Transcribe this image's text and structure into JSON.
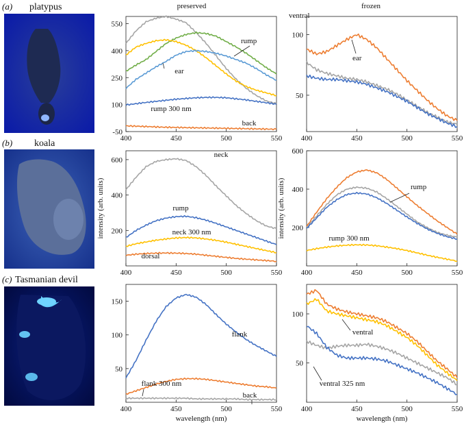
{
  "figure": {
    "columns": [
      "preserved",
      "frozen"
    ],
    "rows": [
      {
        "letter": "(a)",
        "name": "platypus"
      },
      {
        "letter": "(b)",
        "name": "koala"
      },
      {
        "letter": "(c)",
        "name": "Tasmanian devil"
      }
    ],
    "colors": {
      "blue": "#4472c4",
      "orange": "#ed7d31",
      "gray": "#a5a5a5",
      "yellow": "#ffc000",
      "green": "#70ad47",
      "lightblue": "#5b9bd5"
    }
  },
  "chart_data": [
    {
      "type": "line",
      "row": 0,
      "col": 0,
      "xlabel": "",
      "ylabel": "",
      "xlim": [
        400,
        550
      ],
      "ylim": [
        -50,
        590
      ],
      "xticks": [
        400,
        450,
        500,
        550
      ],
      "yticks": [
        -50,
        100,
        250,
        400,
        550
      ],
      "annotations": [
        "ventral",
        "rump",
        "ear",
        "rump 300 nm",
        "back"
      ],
      "series": [
        {
          "color": "#a5a5a5",
          "x": [
            400,
            410,
            420,
            430,
            440,
            450,
            460,
            470,
            480,
            490,
            500,
            510,
            520,
            530,
            540,
            550
          ],
          "y": [
            440,
            510,
            560,
            580,
            590,
            575,
            555,
            500,
            440,
            370,
            300,
            240,
            190,
            150,
            120,
            105
          ]
        },
        {
          "color": "#70ad47",
          "x": [
            400,
            410,
            420,
            430,
            440,
            450,
            460,
            470,
            480,
            490,
            500,
            510,
            520,
            530,
            540,
            550
          ],
          "y": [
            285,
            320,
            350,
            395,
            440,
            470,
            490,
            500,
            495,
            480,
            450,
            420,
            385,
            345,
            305,
            270
          ]
        },
        {
          "color": "#ffc000",
          "x": [
            400,
            410,
            420,
            430,
            440,
            450,
            460,
            470,
            480,
            490,
            500,
            510,
            520,
            530,
            540,
            550
          ],
          "y": [
            375,
            420,
            440,
            455,
            460,
            450,
            430,
            400,
            360,
            315,
            270,
            230,
            200,
            180,
            165,
            150
          ]
        },
        {
          "color": "#5b9bd5",
          "x": [
            400,
            410,
            420,
            430,
            440,
            450,
            460,
            470,
            480,
            490,
            500,
            510,
            520,
            530,
            540,
            550
          ],
          "y": [
            190,
            240,
            275,
            310,
            340,
            375,
            395,
            400,
            395,
            385,
            370,
            350,
            330,
            300,
            265,
            235
          ]
        },
        {
          "color": "#4472c4",
          "x": [
            400,
            410,
            420,
            430,
            440,
            450,
            460,
            470,
            480,
            490,
            500,
            510,
            520,
            530,
            540,
            550
          ],
          "y": [
            98,
            105,
            112,
            118,
            124,
            130,
            134,
            138,
            140,
            140,
            138,
            132,
            126,
            118,
            110,
            102
          ]
        },
        {
          "color": "#ed7d31",
          "x": [
            400,
            410,
            420,
            430,
            440,
            450,
            460,
            470,
            480,
            490,
            500,
            510,
            520,
            530,
            540,
            550
          ],
          "y": [
            -18,
            -20,
            -22,
            -24,
            -26,
            -27,
            -28,
            -29,
            -30,
            -31,
            -32,
            -33,
            -34,
            -35,
            -36,
            -37
          ]
        }
      ]
    },
    {
      "type": "line",
      "row": 0,
      "col": 1,
      "xlabel": "",
      "ylabel": "",
      "xlim": [
        400,
        550
      ],
      "ylim": [
        20,
        115
      ],
      "xticks": [
        400,
        450,
        500,
        550
      ],
      "yticks": [
        50,
        100
      ],
      "annotations": [
        "ear"
      ],
      "series": [
        {
          "color": "#ed7d31",
          "x": [
            400,
            410,
            420,
            430,
            440,
            450,
            460,
            470,
            480,
            490,
            500,
            510,
            520,
            530,
            540,
            550
          ],
          "y": [
            88,
            84,
            86,
            91,
            96,
            100,
            96,
            89,
            80,
            71,
            62,
            54,
            46,
            39,
            33,
            29
          ]
        },
        {
          "color": "#a5a5a5",
          "x": [
            400,
            410,
            420,
            430,
            440,
            450,
            460,
            470,
            480,
            490,
            500,
            510,
            520,
            530,
            540,
            550
          ],
          "y": [
            77,
            71,
            68,
            66,
            64,
            63,
            61,
            58,
            55,
            51,
            46,
            41,
            36,
            32,
            28,
            26
          ]
        },
        {
          "color": "#4472c4",
          "x": [
            400,
            410,
            420,
            430,
            440,
            450,
            460,
            470,
            480,
            490,
            500,
            510,
            520,
            530,
            540,
            550
          ],
          "y": [
            66,
            64,
            63,
            63,
            62,
            61,
            59,
            56,
            53,
            49,
            45,
            40,
            35,
            31,
            27,
            24
          ]
        }
      ]
    },
    {
      "type": "line",
      "row": 1,
      "col": 0,
      "xlabel": "",
      "ylabel": "intensity (arb. units)",
      "xlim": [
        400,
        550
      ],
      "ylim": [
        0,
        650
      ],
      "xticks": [
        400,
        450,
        500,
        550
      ],
      "yticks": [
        200,
        400,
        600
      ],
      "annotations": [
        "neck",
        "rump",
        "neck 300 nm",
        "dorsal"
      ],
      "series": [
        {
          "color": "#a5a5a5",
          "x": [
            400,
            410,
            420,
            430,
            440,
            450,
            460,
            470,
            480,
            490,
            500,
            510,
            520,
            530,
            540,
            550
          ],
          "y": [
            430,
            500,
            560,
            590,
            600,
            605,
            595,
            560,
            510,
            450,
            395,
            340,
            295,
            255,
            225,
            210
          ]
        },
        {
          "color": "#4472c4",
          "x": [
            400,
            410,
            420,
            430,
            440,
            450,
            460,
            470,
            480,
            490,
            500,
            510,
            520,
            530,
            540,
            550
          ],
          "y": [
            160,
            200,
            230,
            255,
            270,
            278,
            280,
            272,
            258,
            240,
            220,
            200,
            180,
            160,
            140,
            120
          ]
        },
        {
          "color": "#ffc000",
          "x": [
            400,
            410,
            420,
            430,
            440,
            450,
            460,
            470,
            480,
            490,
            500,
            510,
            520,
            530,
            540,
            550
          ],
          "y": [
            110,
            125,
            135,
            145,
            152,
            158,
            160,
            158,
            152,
            144,
            134,
            122,
            110,
            98,
            86,
            75
          ]
        },
        {
          "color": "#ed7d31",
          "x": [
            400,
            410,
            420,
            430,
            440,
            450,
            460,
            470,
            480,
            490,
            500,
            510,
            520,
            530,
            540,
            550
          ],
          "y": [
            60,
            66,
            70,
            72,
            73,
            72,
            70,
            66,
            60,
            54,
            48,
            42,
            38,
            34,
            30,
            26
          ]
        }
      ]
    },
    {
      "type": "line",
      "row": 1,
      "col": 1,
      "xlabel": "",
      "ylabel": "intensity (arb. units)",
      "xlim": [
        400,
        550
      ],
      "ylim": [
        0,
        600
      ],
      "xticks": [
        400,
        450,
        500,
        550
      ],
      "yticks": [
        200,
        400,
        600
      ],
      "annotations": [
        "rump",
        "rump 300 nm"
      ],
      "series": [
        {
          "color": "#ed7d31",
          "x": [
            400,
            410,
            420,
            430,
            440,
            450,
            460,
            470,
            480,
            490,
            500,
            510,
            520,
            530,
            540,
            550
          ],
          "y": [
            205,
            280,
            350,
            410,
            460,
            490,
            500,
            485,
            450,
            405,
            360,
            315,
            275,
            235,
            200,
            165
          ]
        },
        {
          "color": "#a5a5a5",
          "x": [
            400,
            410,
            420,
            430,
            440,
            450,
            460,
            470,
            480,
            490,
            500,
            510,
            520,
            530,
            540,
            550
          ],
          "y": [
            200,
            260,
            320,
            370,
            400,
            410,
            405,
            385,
            350,
            310,
            270,
            230,
            200,
            175,
            160,
            150
          ]
        },
        {
          "color": "#4472c4",
          "x": [
            400,
            410,
            420,
            430,
            440,
            450,
            460,
            470,
            480,
            490,
            500,
            510,
            520,
            530,
            540,
            550
          ],
          "y": [
            195,
            250,
            305,
            345,
            372,
            380,
            375,
            355,
            325,
            290,
            255,
            222,
            193,
            170,
            152,
            140
          ]
        },
        {
          "color": "#ffc000",
          "x": [
            400,
            410,
            420,
            430,
            440,
            450,
            460,
            470,
            480,
            490,
            500,
            510,
            520,
            530,
            540,
            550
          ],
          "y": [
            80,
            90,
            98,
            104,
            108,
            110,
            109,
            105,
            98,
            90,
            80,
            68,
            56,
            45,
            35,
            25
          ]
        }
      ]
    },
    {
      "type": "line",
      "row": 2,
      "col": 0,
      "xlabel": "wavelength (nm)",
      "ylabel": "",
      "xlim": [
        400,
        550
      ],
      "ylim": [
        0,
        175
      ],
      "xticks": [
        400,
        450,
        500,
        550
      ],
      "yticks": [
        50,
        100,
        150
      ],
      "annotations": [
        "flank",
        "flank 300 nm",
        "back"
      ],
      "series": [
        {
          "color": "#4472c4",
          "x": [
            400,
            410,
            420,
            430,
            440,
            450,
            460,
            470,
            480,
            490,
            500,
            510,
            520,
            530,
            540,
            550
          ],
          "y": [
            36,
            62,
            92,
            120,
            142,
            155,
            160,
            156,
            145,
            130,
            116,
            104,
            93,
            84,
            76,
            68
          ]
        },
        {
          "color": "#ed7d31",
          "x": [
            400,
            410,
            420,
            430,
            440,
            450,
            460,
            470,
            480,
            490,
            500,
            510,
            520,
            530,
            540,
            550
          ],
          "y": [
            12,
            17,
            22,
            27,
            31,
            34,
            35,
            35,
            34,
            32,
            30,
            28,
            26,
            24,
            23,
            21
          ]
        },
        {
          "color": "#a5a5a5",
          "x": [
            400,
            410,
            420,
            430,
            440,
            450,
            460,
            470,
            480,
            490,
            500,
            510,
            520,
            530,
            540,
            550
          ],
          "y": [
            6,
            6,
            6,
            6,
            6,
            6,
            6,
            5,
            5,
            5,
            5,
            5,
            4,
            4,
            4,
            4
          ]
        }
      ]
    },
    {
      "type": "line",
      "row": 2,
      "col": 1,
      "xlabel": "wavelength (nm)",
      "ylabel": "",
      "xlim": [
        400,
        550
      ],
      "ylim": [
        10,
        130
      ],
      "xticks": [
        400,
        450,
        500,
        550
      ],
      "yticks": [
        50,
        100
      ],
      "annotations": [
        "ventral",
        "ventral 325 nm"
      ],
      "series": [
        {
          "color": "#ed7d31",
          "x": [
            400,
            410,
            420,
            430,
            440,
            450,
            460,
            470,
            480,
            490,
            500,
            510,
            520,
            530,
            540,
            550
          ],
          "y": [
            120,
            124,
            110,
            105,
            102,
            100,
            98,
            96,
            92,
            86,
            80,
            72,
            62,
            52,
            44,
            35
          ]
        },
        {
          "color": "#ffc000",
          "x": [
            400,
            410,
            420,
            430,
            440,
            450,
            460,
            470,
            480,
            490,
            500,
            510,
            520,
            530,
            540,
            550
          ],
          "y": [
            110,
            115,
            103,
            100,
            98,
            96,
            94,
            92,
            88,
            82,
            76,
            68,
            58,
            48,
            40,
            32
          ]
        },
        {
          "color": "#a5a5a5",
          "x": [
            400,
            410,
            420,
            430,
            440,
            450,
            460,
            470,
            480,
            490,
            500,
            510,
            520,
            530,
            540,
            550
          ],
          "y": [
            72,
            68,
            65,
            67,
            68,
            68,
            69,
            67,
            64,
            60,
            55,
            50,
            45,
            40,
            35,
            28
          ]
        },
        {
          "color": "#4472c4",
          "x": [
            400,
            410,
            420,
            430,
            440,
            450,
            460,
            470,
            480,
            490,
            500,
            510,
            520,
            530,
            540,
            550
          ],
          "y": [
            88,
            80,
            66,
            58,
            55,
            55,
            55,
            54,
            52,
            48,
            44,
            40,
            35,
            30,
            24,
            18
          ]
        }
      ]
    }
  ]
}
